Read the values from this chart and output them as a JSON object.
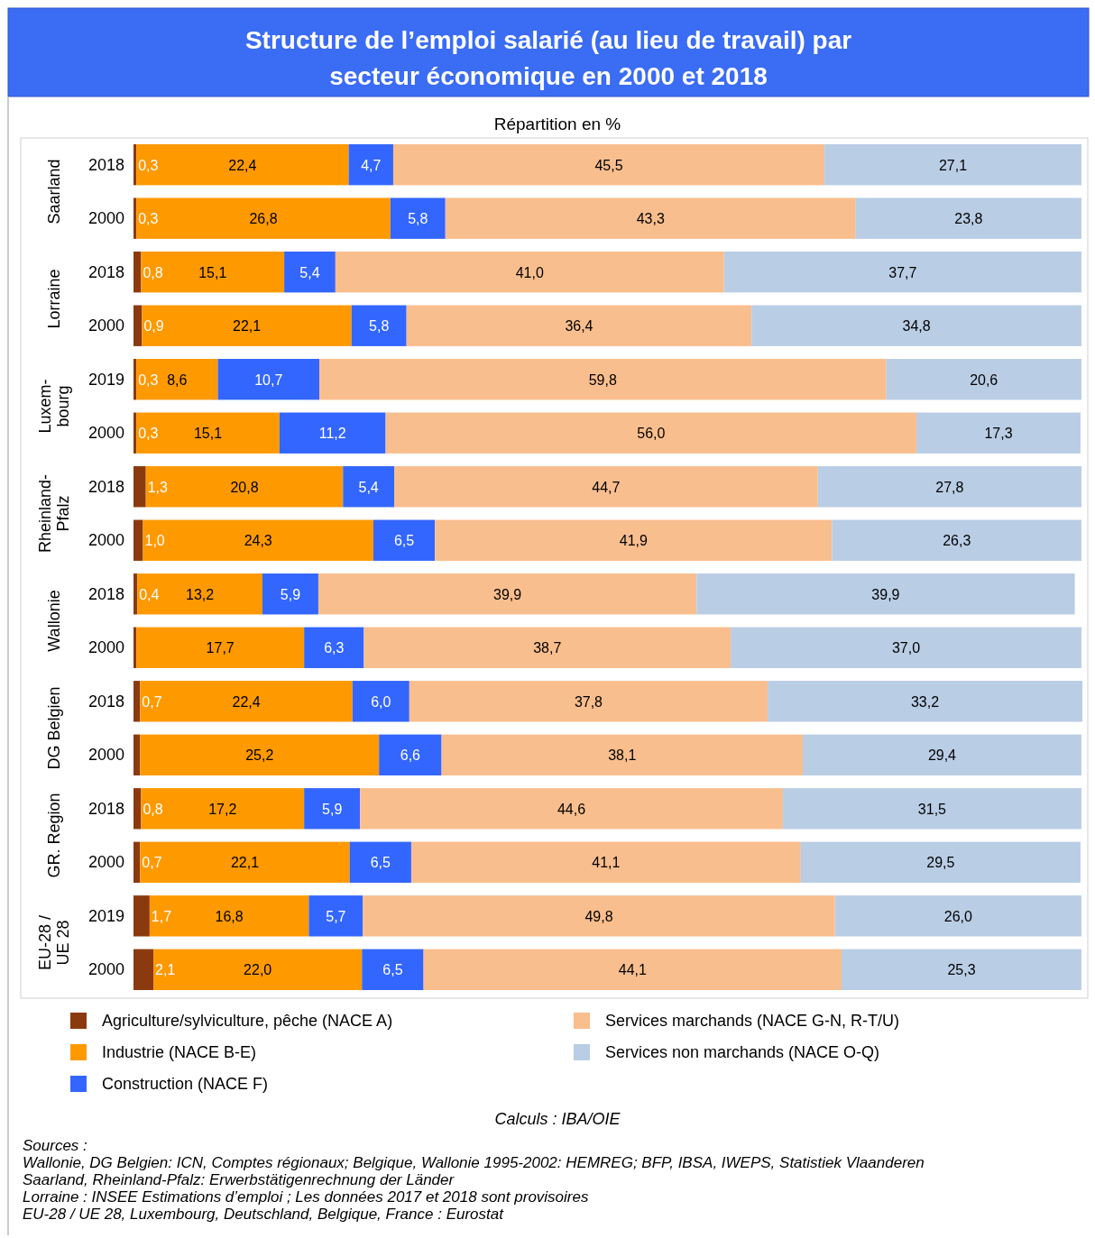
{
  "chart_data": {
    "type": "bar",
    "orientation": "horizontal",
    "stacked": true,
    "title": "Structure de l’emploi salarié (au lieu de travail) par\nsecteur économique en 2000 et 2018",
    "subtitle": "Répartition en %",
    "categories": [
      "2018",
      "2000",
      "2018",
      "2000",
      "2019",
      "2000",
      "2018",
      "2000",
      "2018",
      "2000",
      "2018",
      "2000",
      "2018",
      "2000",
      "2019",
      "2000"
    ],
    "series": [
      {
        "name": "Agriculture/sylviculture, pêche (NACE A)",
        "color": "#8b3a0f",
        "values": [
          0.3,
          0.3,
          0.8,
          0.9,
          0.3,
          0.3,
          1.3,
          1.0,
          0.4,
          0.3,
          0.7,
          0.7,
          0.8,
          0.7,
          1.7,
          2.1
        ],
        "value_labels": [
          "0,3",
          "0,3",
          "0,8",
          "0,9",
          "0,3",
          "0,3",
          "1,3",
          "1,0",
          "0,4",
          null,
          "0,7",
          null,
          "0,8",
          "0,7",
          "1,7",
          "2,1"
        ]
      },
      {
        "name": "Industrie (NACE B-E)",
        "color": "#ff9900",
        "values": [
          22.4,
          26.8,
          15.1,
          22.1,
          8.6,
          15.1,
          20.8,
          24.3,
          13.2,
          17.7,
          22.4,
          25.2,
          17.2,
          22.1,
          16.8,
          22.0
        ],
        "value_labels": [
          "22,4",
          "26,8",
          "15,1",
          "22,1",
          "8,6",
          "15,1",
          "20,8",
          "24,3",
          "13,2",
          "17,7",
          "22,4",
          "25,2",
          "17,2",
          "22,1",
          "16,8",
          "22,0"
        ]
      },
      {
        "name": "Construction (NACE F)",
        "color": "#3366ff",
        "values": [
          4.7,
          5.8,
          5.4,
          5.8,
          10.7,
          11.2,
          5.4,
          6.5,
          5.9,
          6.3,
          6.0,
          6.6,
          5.9,
          6.5,
          5.7,
          6.5
        ],
        "value_labels": [
          "4,7",
          "5,8",
          "5,4",
          "5,8",
          "10,7",
          "11,2",
          "5,4",
          "6,5",
          "5,9",
          "6,3",
          "6,0",
          "6,6",
          "5,9",
          "6,5",
          "5,7",
          "6,5"
        ]
      },
      {
        "name": "Services marchands (NACE G-N, R-T/U)",
        "color": "#f9be8e",
        "values": [
          45.5,
          43.3,
          41.0,
          36.4,
          59.8,
          56.0,
          44.7,
          41.9,
          39.9,
          38.7,
          37.8,
          38.1,
          44.6,
          41.1,
          49.8,
          44.1
        ],
        "value_labels": [
          "45,5",
          "43,3",
          "41,0",
          "36,4",
          "59,8",
          "56,0",
          "44,7",
          "41,9",
          "39,9",
          "38,7",
          "37,8",
          "38,1",
          "44,6",
          "41,1",
          "49,8",
          "44,1"
        ]
      },
      {
        "name": "Services non marchands (NACE O-Q)",
        "color": "#b9cde5",
        "values": [
          27.1,
          23.8,
          37.7,
          34.8,
          20.6,
          17.3,
          27.8,
          26.3,
          39.9,
          37.0,
          33.2,
          29.4,
          31.5,
          29.5,
          26.0,
          25.3
        ],
        "value_labels": [
          "27,1",
          "23,8",
          "37,7",
          "34,8",
          "20,6",
          "17,3",
          "27,8",
          "26,3",
          "39,9",
          "37,0",
          "33,2",
          "29,4",
          "31,5",
          "29,5",
          "26,0",
          "25,3"
        ]
      }
    ],
    "legend": "bottom",
    "annotations": [
      "Saarland",
      "Lorraine",
      "Luxem-\nbourg",
      "Rheinland-\nPfalz",
      "Wallonie",
      "DG Belgien",
      "GR. Region",
      "EU-28 /\nUE 28",
      "Calculs : IBA/OIE",
      "Sources :",
      "Wallonie, DG Belgien: ICN, Comptes régionaux; Belgique, Wallonie 1995-2002: HEMREG; BFP, IBSA, IWEPS, Statistiek Vlaanderen",
      "Saarland, Rheinland-Pfalz: Erwerbstätigenrechnung der Länder",
      "Lorraine : INSEE Estimations d’emploi ; Les données 2017 et 2018 sont provisoires",
      "EU-28 / UE 28, Luxembourg, Deutschland, Belgique, France : Eurostat"
    ]
  }
}
